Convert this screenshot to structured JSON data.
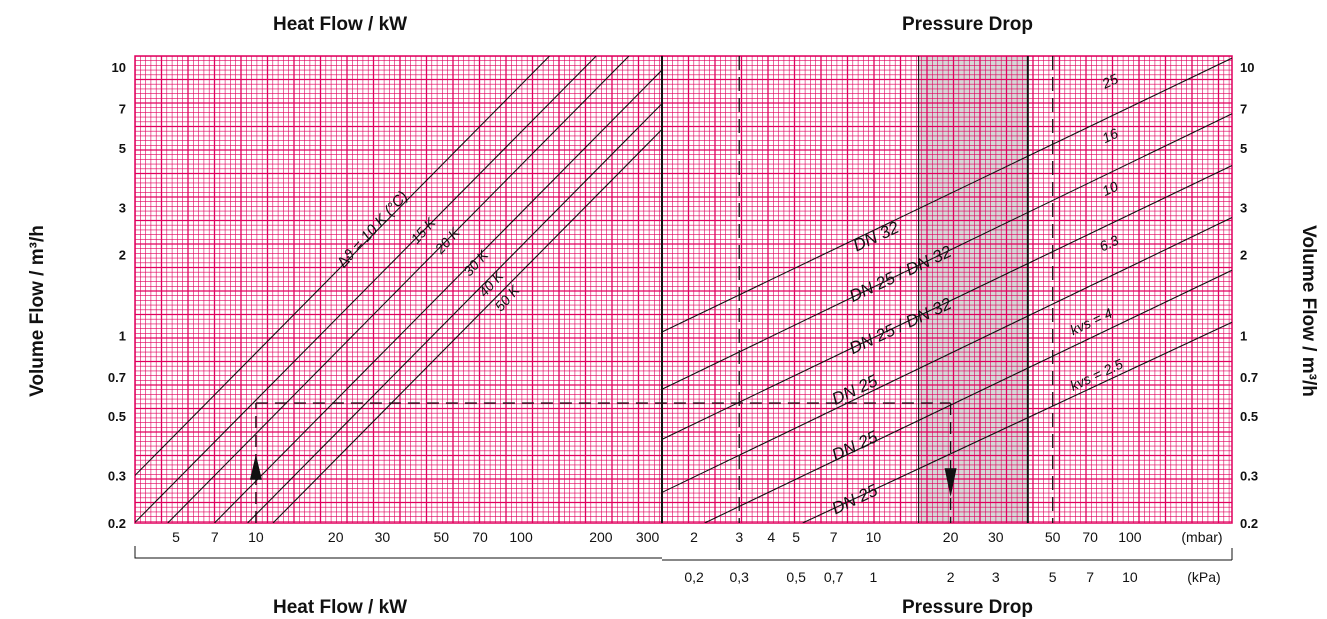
{
  "titles": {
    "left_top": "Heat Flow / kW",
    "left_bottom": "Heat Flow / kW",
    "right_top": "Pressure Drop",
    "right_bottom": "Pressure Drop",
    "y_left": "Volume Flow / m³/h",
    "y_right": "Volume Flow / m³/h"
  },
  "colors": {
    "grid": "#e0005e",
    "background": "#ffffff",
    "line": "#111111",
    "shade": "#c8c8c8"
  },
  "chart_data": [
    {
      "type": "line",
      "scale": "log-log",
      "title": "Heat Flow / kW",
      "ylabel": "Volume Flow / m³/h",
      "xlim": [
        3.5,
        340
      ],
      "ylim": [
        0.2,
        11
      ],
      "x_ticks": [
        "5",
        "7",
        "10",
        "20",
        "30",
        "50",
        "70",
        "100",
        "200",
        "300"
      ],
      "x_tick_values": [
        5,
        7,
        10,
        20,
        30,
        50,
        70,
        100,
        200,
        300
      ],
      "y_ticks": [
        "10",
        "7",
        "5",
        "3",
        "2",
        "1",
        "0.7",
        "0.5",
        "0.3",
        "0.2"
      ],
      "y_tick_values": [
        10,
        7,
        5,
        3,
        2,
        1,
        0.7,
        0.5,
        0.3,
        0.2
      ],
      "series": [
        {
          "name": "∆ϑ = 10 K (°C)",
          "x": [
            3.5,
            128
          ],
          "y": [
            0.301,
            11
          ]
        },
        {
          "name": "15 K",
          "x": [
            3.5,
            192
          ],
          "y": [
            0.201,
            11
          ]
        },
        {
          "name": "20 K",
          "x": [
            4.65,
            255
          ],
          "y": [
            0.2,
            11
          ]
        },
        {
          "name": "30 K",
          "x": [
            6.98,
            340
          ],
          "y": [
            0.2,
            9.75
          ]
        },
        {
          "name": "40 K",
          "x": [
            9.3,
            340
          ],
          "y": [
            0.2,
            7.31
          ]
        },
        {
          "name": "50 K",
          "x": [
            11.6,
            340
          ],
          "y": [
            0.2,
            5.86
          ]
        }
      ],
      "line_labels": [
        "∆ϑ = 10 K (°C)",
        "15 K",
        "20 K",
        "30 K",
        "40 K",
        "50 K"
      ],
      "annotation": {
        "x": 10,
        "y": 0.56,
        "arrow": "up"
      }
    },
    {
      "type": "line",
      "scale": "log-log",
      "title": "Pressure Drop",
      "ylabel": "Volume Flow / m³/h",
      "xlim": [
        1.5,
        250
      ],
      "ylim": [
        0.2,
        11
      ],
      "x_ticks_mbar": [
        "2",
        "3",
        "4",
        "5",
        "7",
        "10",
        "20",
        "30",
        "50",
        "70",
        "100",
        "(mbar)"
      ],
      "x_tick_values_mbar": [
        2,
        3,
        4,
        5,
        7,
        10,
        20,
        30,
        50,
        70,
        100
      ],
      "x_ticks_kpa": [
        "0,2",
        "0,3",
        "0,5",
        "0,7",
        "1",
        "2",
        "3",
        "5",
        "7",
        "10",
        "(kPa)"
      ],
      "x_tick_values_kpa": [
        0.2,
        0.3,
        0.5,
        0.7,
        1,
        2,
        3,
        5,
        7,
        10
      ],
      "y_ticks": [
        "10",
        "7",
        "5",
        "3",
        "2",
        "1",
        "0.7",
        "0.5",
        "0.3",
        "0.2"
      ],
      "y_tick_values": [
        10,
        7,
        5,
        3,
        2,
        1,
        0.7,
        0.5,
        0.3,
        0.2
      ],
      "shaded_range_mbar": [
        15,
        40
      ],
      "dashed_x_mbar": [
        3,
        50
      ],
      "series": [
        {
          "name": "25",
          "x": [
            1.5,
            250
          ],
          "y": [
            1.03,
            10.8
          ]
        },
        {
          "name": "16",
          "x": [
            1.5,
            250
          ],
          "y": [
            0.63,
            6.7
          ]
        },
        {
          "name": "10",
          "x": [
            1.5,
            250
          ],
          "y": [
            0.41,
            4.3
          ]
        },
        {
          "name": "6.3",
          "x": [
            1.5,
            250
          ],
          "y": [
            0.26,
            2.75
          ]
        },
        {
          "name": "4",
          "x": [
            2.2,
            250
          ],
          "y": [
            0.2,
            1.75
          ]
        },
        {
          "name": "2.5",
          "x": [
            5.3,
            250
          ],
          "y": [
            0.2,
            1.12
          ]
        }
      ],
      "kvs_labels": [
        "25",
        "16",
        "10",
        "6.3",
        "kvs =    4",
        "kvs = 2.5"
      ],
      "dn_labels": [
        "DN 32",
        "DN 25 / DN 32",
        "DN 25 / DN 32",
        "DN 25",
        "DN 25",
        "DN 25"
      ],
      "annotation": {
        "x": 20,
        "y": 0.56,
        "arrow": "down"
      }
    }
  ]
}
